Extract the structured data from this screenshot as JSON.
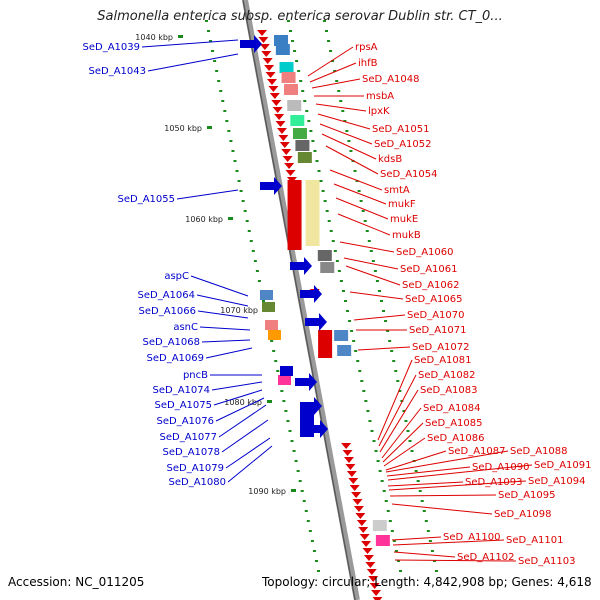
{
  "title": "Salmonella enterica subsp. enterica serovar Dublin str. CT_0...",
  "accession": "Accession: NC_011205",
  "summary": "Topology: circular; Length: 4,842,908 bp; Genes: 4,618",
  "colors": {
    "forward": "#0000cc",
    "reverse": "#dd0000",
    "backbone": "#888888",
    "tick": "#1a8a1a"
  },
  "kbp_ticks": [
    "1040 kbp",
    "1050 kbp",
    "1060 kbp",
    "1070 kbp",
    "1080 kbp",
    "1090 kbp"
  ],
  "forward_genes": [
    "SeD_A1039",
    "SeD_A1043",
    "SeD_A1055",
    "aspC",
    "SeD_A1064",
    "SeD_A1066",
    "asnC",
    "SeD_A1068",
    "SeD_A1069",
    "pncB",
    "SeD_A1074",
    "SeD_A1075",
    "SeD_A1076",
    "SeD_A1077",
    "SeD_A1078",
    "SeD_A1079",
    "SeD_A1080"
  ],
  "reverse_genes": [
    "rpsA",
    "ihfB",
    "SeD_A1048",
    "msbA",
    "lpxK",
    "SeD_A1051",
    "SeD_A1052",
    "kdsB",
    "SeD_A1054",
    "smtA",
    "mukF",
    "mukE",
    "mukB",
    "SeD_A1060",
    "SeD_A1061",
    "SeD_A1062",
    "SeD_A1065",
    "SeD_A1070",
    "SeD_A1071",
    "SeD_A1072",
    "SeD_A1081",
    "SeD_A1082",
    "SeD_A1083",
    "SeD_A1084",
    "SeD_A1085",
    "SeD_A1086",
    "SeD_A1087",
    "SeD_A1088",
    "SeD_A1090",
    "SeD_A1091",
    "SeD_A1093",
    "SeD_A1094",
    "SeD_A1095",
    "SeD_A1098",
    "SeD_A1100",
    "SeD_A1101",
    "SeD_A1102",
    "SeD_A1103"
  ]
}
